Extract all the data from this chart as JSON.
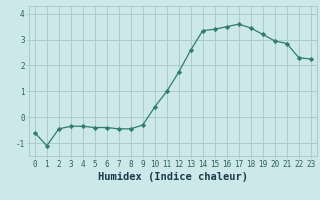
{
  "x": [
    0,
    1,
    2,
    3,
    4,
    5,
    6,
    7,
    8,
    9,
    10,
    11,
    12,
    13,
    14,
    15,
    16,
    17,
    18,
    19,
    20,
    21,
    22,
    23
  ],
  "y": [
    -0.6,
    -1.1,
    -0.45,
    -0.35,
    -0.35,
    -0.4,
    -0.4,
    -0.45,
    -0.45,
    -0.3,
    0.4,
    1.0,
    1.75,
    2.6,
    3.35,
    3.4,
    3.5,
    3.6,
    3.45,
    3.2,
    2.95,
    2.85,
    2.3,
    2.25
  ],
  "xlabel": "Humidex (Indice chaleur)",
  "line_color": "#2e7d6e",
  "marker": "D",
  "marker_size": 2.2,
  "bg_color": "#cce8e8",
  "grid_color": "#aacccc",
  "ylim": [
    -1.5,
    4.3
  ],
  "xlim": [
    -0.5,
    23.5
  ],
  "yticks": [
    -1,
    0,
    1,
    2,
    3,
    4
  ],
  "xticks": [
    0,
    1,
    2,
    3,
    4,
    5,
    6,
    7,
    8,
    9,
    10,
    11,
    12,
    13,
    14,
    15,
    16,
    17,
    18,
    19,
    20,
    21,
    22,
    23
  ],
  "tick_label_fontsize": 5.5,
  "xlabel_fontsize": 7.5,
  "tick_color": "#2e6060",
  "label_color": "#1a3a4a"
}
